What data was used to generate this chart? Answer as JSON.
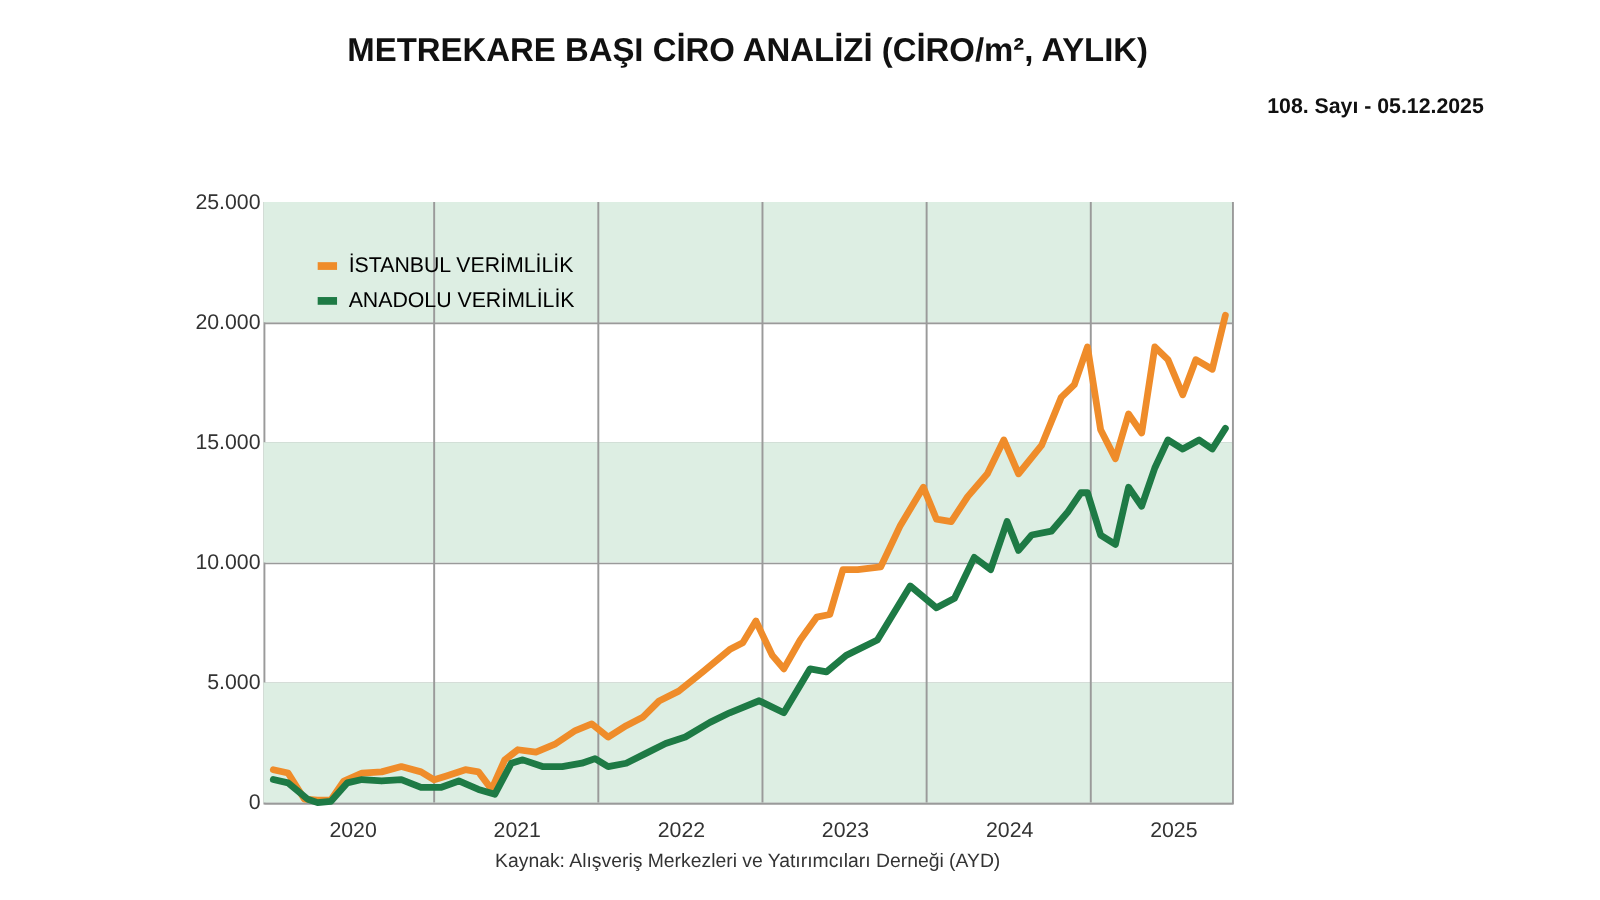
{
  "chart_data": {
    "type": "line",
    "title": "METREKARE BAŞI CİRO ANALİZİ (CİRO/m², AYLIK)",
    "annotations": [
      "108. Sayı - 05.12.2025",
      "Kaynak: Alışveriş Merkezleri ve Yatırımcıları Derneği (AYD)"
    ],
    "xlim": [
      2019.96,
      2025.86
    ],
    "xticks": [
      {
        "value": 2020.5,
        "label": "2020"
      },
      {
        "value": 2021.5,
        "label": "2021"
      },
      {
        "value": 2022.5,
        "label": "2022"
      },
      {
        "value": 2023.5,
        "label": "2023"
      },
      {
        "value": 2024.5,
        "label": "2024"
      },
      {
        "value": 2025.5,
        "label": "2025"
      },
      {
        "value": 2021,
        "label": null
      },
      {
        "value": 2022,
        "label": null
      },
      {
        "value": 2023,
        "label": null
      },
      {
        "value": 2024,
        "label": null
      },
      {
        "value": 2025,
        "label": null
      }
    ],
    "ylim": [
      0,
      25000
    ],
    "yticks": [
      {
        "value": 0,
        "label": "0"
      },
      {
        "value": 5000,
        "label": "5.000"
      },
      {
        "value": 10000,
        "label": "10.000"
      },
      {
        "value": 15000,
        "label": "15.000"
      },
      {
        "value": 20000,
        "label": "20.000"
      },
      {
        "value": 25000,
        "label": "25.000"
      }
    ],
    "grid": true,
    "legend": "top left",
    "line_style": "solid",
    "bands": [
      {
        "axis": "y",
        "from": 0,
        "to": 5000,
        "color": "#ddeee3"
      },
      {
        "axis": "y",
        "from": 10000,
        "to": 15000,
        "color": "#ddeee3"
      },
      {
        "axis": "y",
        "from": 20000,
        "to": 25000,
        "color": "#ddeee3"
      }
    ],
    "series": [
      {
        "name": "İSTANBUL VERİMLİLİK",
        "color": "#ef8c2a",
        "x": [
          2020.02,
          2020.11,
          2020.21,
          2020.29,
          2020.37,
          2020.45,
          2020.56,
          2020.68,
          2020.8,
          2020.92,
          2021.0,
          2021.07,
          2021.19,
          2021.27,
          2021.35,
          2021.43,
          2021.51,
          2021.62,
          2021.74,
          2021.86,
          2021.96,
          2022.06,
          2022.17,
          2022.27,
          2022.37,
          2022.49,
          2022.64,
          2022.8,
          2022.88,
          2022.96,
          2023.06,
          2023.13,
          2023.23,
          2023.33,
          2023.41,
          2023.49,
          2023.58,
          2023.72,
          2023.84,
          2023.98,
          2024.06,
          2024.15,
          2024.25,
          2024.37,
          2024.47,
          2024.56,
          2024.7,
          2024.82,
          2024.9,
          2024.98,
          2025.06,
          2025.15,
          2025.23,
          2025.31,
          2025.39,
          2025.47,
          2025.56,
          2025.64,
          2025.74,
          2025.82
        ],
        "values": [
          1370,
          1230,
          140,
          100,
          100,
          900,
          1230,
          1280,
          1500,
          1280,
          950,
          1100,
          1370,
          1280,
          550,
          1780,
          2200,
          2100,
          2450,
          3000,
          3280,
          2730,
          3200,
          3550,
          4230,
          4640,
          5460,
          6370,
          6660,
          7560,
          6130,
          5570,
          6770,
          7720,
          7830,
          9700,
          9700,
          9810,
          11540,
          13130,
          11800,
          11700,
          12740,
          13690,
          15100,
          13690,
          14870,
          16870,
          17400,
          18970,
          15520,
          14320,
          16180,
          15390,
          18970,
          18440,
          16980,
          18440,
          18040,
          20290
        ]
      },
      {
        "name": "ANADOLU VERİMLİLİK",
        "color": "#1e7a45",
        "x": [
          2020.02,
          2020.11,
          2020.23,
          2020.29,
          2020.37,
          2020.47,
          2020.56,
          2020.68,
          2020.8,
          2020.92,
          2021.04,
          2021.15,
          2021.27,
          2021.37,
          2021.47,
          2021.54,
          2021.66,
          2021.78,
          2021.9,
          2021.98,
          2022.06,
          2022.17,
          2022.29,
          2022.41,
          2022.53,
          2022.68,
          2022.8,
          2022.98,
          2023.13,
          2023.29,
          2023.39,
          2023.51,
          2023.7,
          2023.9,
          2024.06,
          2024.17,
          2024.29,
          2024.39,
          2024.49,
          2024.56,
          2024.64,
          2024.76,
          2024.86,
          2024.94,
          2024.98,
          2025.06,
          2025.15,
          2025.23,
          2025.31,
          2025.39,
          2025.47,
          2025.56,
          2025.66,
          2025.74,
          2025.82
        ],
        "values": [
          960,
          820,
          140,
          0,
          50,
          820,
          960,
          900,
          960,
          630,
          630,
          900,
          550,
          350,
          1640,
          1780,
          1500,
          1500,
          1640,
          1830,
          1500,
          1640,
          2050,
          2460,
          2730,
          3340,
          3740,
          4240,
          3740,
          5570,
          5440,
          6130,
          6770,
          9020,
          8110,
          8510,
          10210,
          9700,
          11700,
          10500,
          11140,
          11300,
          12100,
          12900,
          12900,
          11140,
          10750,
          13130,
          12340,
          13930,
          15100,
          14720,
          15100,
          14720,
          15580
        ]
      }
    ]
  }
}
